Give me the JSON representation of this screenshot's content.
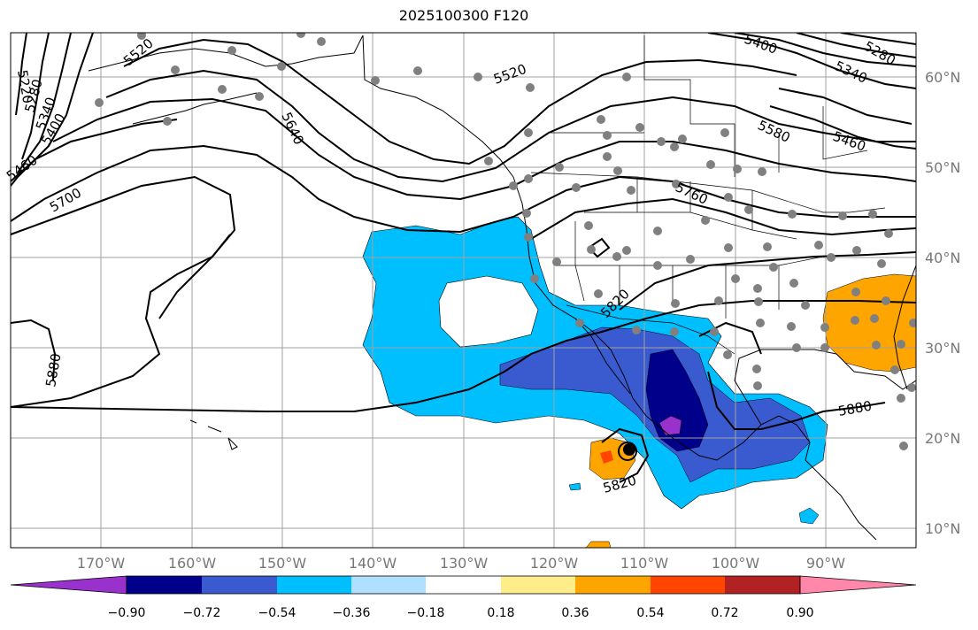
{
  "title": "2025100300 F120",
  "lat_labels": [
    "60°N",
    "50°N",
    "40°N",
    "30°N",
    "20°N",
    "10°N"
  ],
  "lon_labels": [
    "170°W",
    "160°W",
    "150°W",
    "140°W",
    "130°W",
    "120°W",
    "110°W",
    "100°W",
    "90°W"
  ],
  "contour_labels": [
    "5220",
    "5280",
    "5340",
    "5400",
    "5460",
    "5520",
    "5640",
    "5700",
    "5880",
    "5520",
    "5580",
    "5760",
    "5820",
    "5880",
    "5820",
    "5400",
    "5340",
    "5280",
    "5460"
  ],
  "colorbar": {
    "ticks": [
      "−0.90",
      "−0.72",
      "−0.54",
      "−0.36",
      "−0.18",
      "0.18",
      "0.36",
      "0.54",
      "0.72",
      "0.90"
    ],
    "colors": [
      "#9932cc",
      "#00008b",
      "#3a5bd0",
      "#00bfff",
      "#b0e0ff",
      "#ffffff",
      "#ffed8a",
      "#ffa500",
      "#ff4500",
      "#b22222",
      "#ff88aa"
    ]
  },
  "fill_colors": {
    "light_blue": "#00bfff",
    "medium_blue": "#3a5bd0",
    "dark_blue": "#00008b",
    "purple": "#9932cc",
    "orange": "#ffa500",
    "red": "#ff4500"
  }
}
